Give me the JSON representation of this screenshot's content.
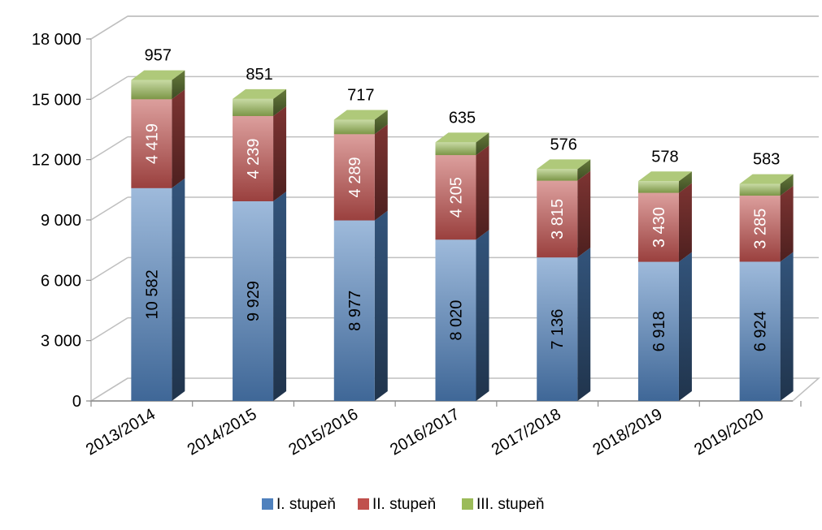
{
  "chart_data": {
    "type": "bar",
    "stacked": true,
    "three_d": true,
    "categories": [
      "2013/2014",
      "2014/2015",
      "2015/2016",
      "2016/2017",
      "2017/2018",
      "2018/2019",
      "2019/2020"
    ],
    "series": [
      {
        "name": "I. stupeň",
        "values": [
          10582,
          9929,
          8977,
          8020,
          7136,
          6918,
          6924
        ],
        "labels": [
          "10 582",
          "9 929",
          "8 977",
          "8 020",
          "7 136",
          "6 918",
          "6 924"
        ],
        "color": "#4F81BD"
      },
      {
        "name": "II. stupeň",
        "values": [
          4419,
          4239,
          4289,
          4205,
          3815,
          3430,
          3285
        ],
        "labels": [
          "4 419",
          "4 239",
          "4 289",
          "4 205",
          "3 815",
          "3 430",
          "3 285"
        ],
        "color": "#C0504D"
      },
      {
        "name": "III. stupeň",
        "values": [
          957,
          851,
          717,
          635,
          576,
          578,
          583
        ],
        "labels": [
          "957",
          "851",
          "717",
          "635",
          "576",
          "578",
          "583"
        ],
        "color": "#9BBB59"
      }
    ],
    "ylim": [
      0,
      18000
    ],
    "yticks": [
      0,
      3000,
      6000,
      9000,
      12000,
      15000,
      18000
    ],
    "ytick_labels": [
      "0",
      "3 000",
      "6 000",
      "9 000",
      "12 000",
      "15 000",
      "18 000"
    ],
    "grid": true,
    "legend": "bottom",
    "title": "",
    "xlabel": "",
    "ylabel": ""
  }
}
